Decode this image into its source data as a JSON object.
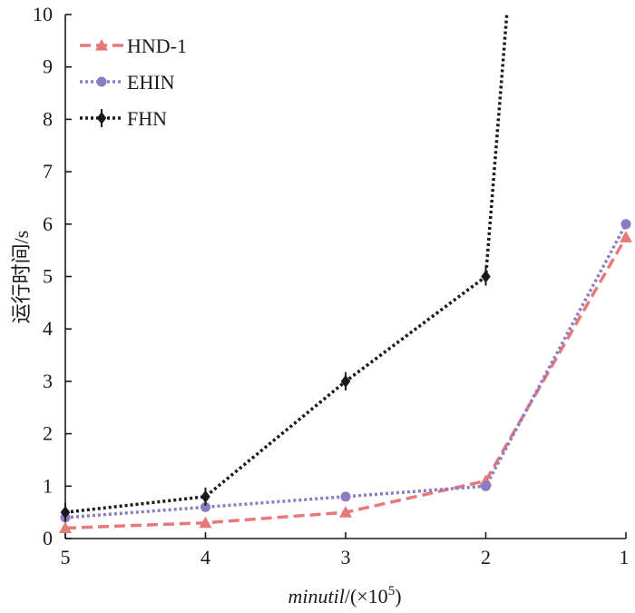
{
  "chart_data": {
    "type": "line",
    "title": "",
    "xlabel": "minutil/(×10⁵)",
    "xlabel_parts": {
      "italic": "minutil",
      "rest": "/(×10",
      "sup": "5",
      "close": ")"
    },
    "ylabel": "运行时间/s",
    "x": [
      5,
      4,
      3,
      2,
      1
    ],
    "x_tick_labels": [
      "5",
      "4",
      "3",
      "2",
      "1"
    ],
    "x_reversed": true,
    "xlim": [
      5,
      1
    ],
    "ylim": [
      0,
      10
    ],
    "y_ticks": [
      0,
      1,
      2,
      3,
      4,
      5,
      6,
      7,
      8,
      9,
      10
    ],
    "y_tick_labels": [
      "0",
      "1",
      "2",
      "3",
      "4",
      "5",
      "6",
      "7",
      "8",
      "9",
      "10"
    ],
    "grid": false,
    "legend": "top-left",
    "series": [
      {
        "name": "HND-1",
        "color": "#e8797a",
        "style": "dashed",
        "marker": "triangle",
        "values": [
          0.2,
          0.3,
          0.5,
          1.1,
          5.75
        ]
      },
      {
        "name": "EHIN",
        "color": "#8e7cc3",
        "style": "dotted",
        "marker": "circle",
        "values": [
          0.4,
          0.6,
          0.8,
          1.0,
          6.0
        ]
      },
      {
        "name": "FHN",
        "color": "#1a1a1a",
        "style": "dotted",
        "marker": "diamond",
        "values": [
          0.5,
          0.8,
          3.0,
          5.0,
          null
        ],
        "exits_top_near_x": 1.85
      }
    ]
  }
}
